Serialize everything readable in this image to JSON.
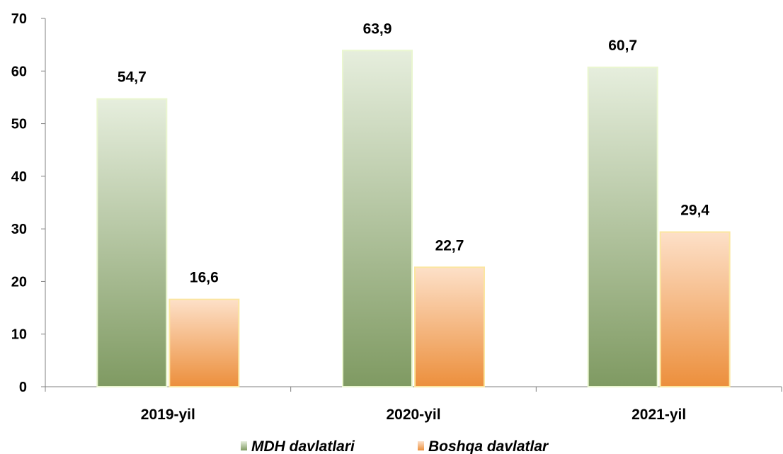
{
  "chart_data": {
    "type": "bar",
    "categories": [
      "2019-yil",
      "2020-yil",
      "2021-yil"
    ],
    "series": [
      {
        "name": "MDH davlatlari",
        "values": [
          54.7,
          63.9,
          60.7
        ],
        "labels": [
          "54,7",
          "63,9",
          "60,7"
        ],
        "color": "#8aa36e"
      },
      {
        "name": "Boshqa davlatlar",
        "values": [
          16.6,
          22.7,
          29.4
        ],
        "labels": [
          "16,6",
          "22,7",
          "29,4"
        ],
        "color": "#f0a060"
      }
    ],
    "ylim": [
      0,
      70
    ],
    "yticks": [
      0,
      10,
      20,
      30,
      40,
      50,
      60,
      70
    ],
    "title": "",
    "xlabel": "",
    "ylabel": "",
    "grid": false,
    "legend_position": "bottom-center"
  }
}
